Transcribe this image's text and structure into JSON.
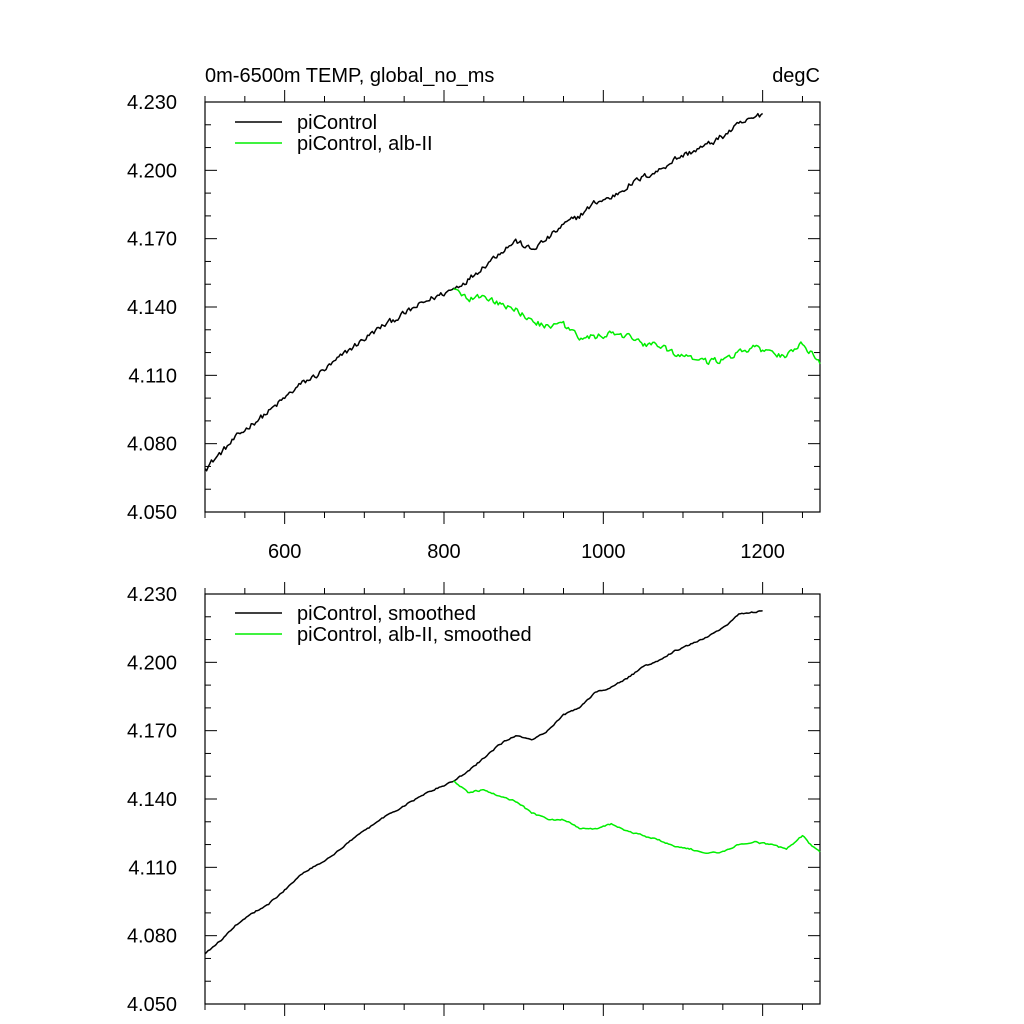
{
  "chart_data": [
    {
      "type": "line",
      "title": "0m-6500m TEMP, global_no_ms",
      "units": "degC",
      "xlim": [
        500,
        1272
      ],
      "ylim": [
        4.05,
        4.23
      ],
      "xticks": [
        600,
        800,
        1000,
        1200
      ],
      "xtick_labels": [
        "600",
        "800",
        "1000",
        "1200"
      ],
      "yticks": [
        4.05,
        4.08,
        4.11,
        4.14,
        4.17,
        4.2,
        4.23
      ],
      "ytick_labels": [
        "4.050",
        "4.080",
        "4.110",
        "4.140",
        "4.170",
        "4.200",
        "4.230"
      ],
      "legend_position": "top-left",
      "series": [
        {
          "name": "piControl",
          "color": "#000000",
          "x": [
            500,
            520,
            540,
            560,
            580,
            600,
            620,
            640,
            660,
            680,
            700,
            720,
            740,
            760,
            780,
            800,
            812,
            830,
            850,
            870,
            890,
            910,
            930,
            950,
            970,
            990,
            1010,
            1030,
            1050,
            1070,
            1090,
            1110,
            1130,
            1150,
            1170,
            1190,
            1200
          ],
          "y": [
            4.069,
            4.076,
            4.083,
            4.089,
            4.094,
            4.1,
            4.106,
            4.11,
            4.115,
            4.121,
            4.126,
            4.131,
            4.135,
            4.139,
            4.143,
            4.146,
            4.148,
            4.152,
            4.158,
            4.164,
            4.169,
            4.165,
            4.17,
            4.176,
            4.18,
            4.186,
            4.188,
            4.193,
            4.197,
            4.2,
            4.205,
            4.208,
            4.211,
            4.215,
            4.22,
            4.223,
            4.225
          ],
          "noise": 0.0012
        },
        {
          "name": "piControl, alb-II",
          "color": "#00ee00",
          "x": [
            812,
            830,
            850,
            870,
            890,
            910,
            930,
            950,
            970,
            990,
            1010,
            1030,
            1050,
            1070,
            1090,
            1110,
            1130,
            1150,
            1170,
            1190,
            1210,
            1230,
            1250,
            1260,
            1272
          ],
          "y": [
            4.148,
            4.143,
            4.145,
            4.141,
            4.139,
            4.134,
            4.131,
            4.132,
            4.127,
            4.127,
            4.128,
            4.127,
            4.124,
            4.123,
            4.119,
            4.118,
            4.116,
            4.117,
            4.12,
            4.122,
            4.12,
            4.118,
            4.124,
            4.12,
            4.116
          ],
          "noise": 0.0012
        }
      ]
    },
    {
      "type": "line",
      "title": "",
      "units": "",
      "xlim": [
        500,
        1272
      ],
      "ylim": [
        4.05,
        4.23
      ],
      "xticks": [
        600,
        800,
        1000,
        1200
      ],
      "xtick_labels": [],
      "yticks": [
        4.05,
        4.08,
        4.11,
        4.14,
        4.17,
        4.2,
        4.23
      ],
      "ytick_labels": [
        "4.050",
        "4.080",
        "4.110",
        "4.140",
        "4.170",
        "4.200",
        "4.230"
      ],
      "legend_position": "top-left",
      "series": [
        {
          "name": "piControl, smoothed",
          "color": "#000000",
          "x": [
            500,
            520,
            540,
            560,
            580,
            600,
            620,
            640,
            660,
            680,
            700,
            720,
            740,
            760,
            780,
            800,
            812,
            830,
            850,
            870,
            890,
            910,
            930,
            950,
            970,
            990,
            1010,
            1030,
            1050,
            1070,
            1090,
            1110,
            1130,
            1150,
            1170,
            1190,
            1200
          ],
          "y": [
            4.072,
            4.078,
            4.085,
            4.09,
            4.094,
            4.1,
            4.107,
            4.111,
            4.115,
            4.121,
            4.126,
            4.131,
            4.135,
            4.139,
            4.143,
            4.146,
            4.148,
            4.152,
            4.158,
            4.164,
            4.168,
            4.166,
            4.17,
            4.177,
            4.18,
            4.187,
            4.189,
            4.193,
            4.198,
            4.201,
            4.205,
            4.208,
            4.211,
            4.215,
            4.221,
            4.222,
            4.223
          ],
          "noise": 0.0003
        },
        {
          "name": "piControl, alb-II, smoothed",
          "color": "#00ee00",
          "x": [
            812,
            830,
            850,
            870,
            890,
            910,
            930,
            950,
            970,
            990,
            1010,
            1030,
            1050,
            1070,
            1090,
            1110,
            1130,
            1150,
            1170,
            1190,
            1210,
            1230,
            1250,
            1260,
            1272
          ],
          "y": [
            4.148,
            4.143,
            4.144,
            4.141,
            4.139,
            4.134,
            4.131,
            4.131,
            4.127,
            4.127,
            4.129,
            4.126,
            4.124,
            4.122,
            4.119,
            4.118,
            4.116,
            4.117,
            4.12,
            4.121,
            4.12,
            4.118,
            4.124,
            4.12,
            4.117
          ],
          "noise": 0.0003
        }
      ]
    }
  ]
}
